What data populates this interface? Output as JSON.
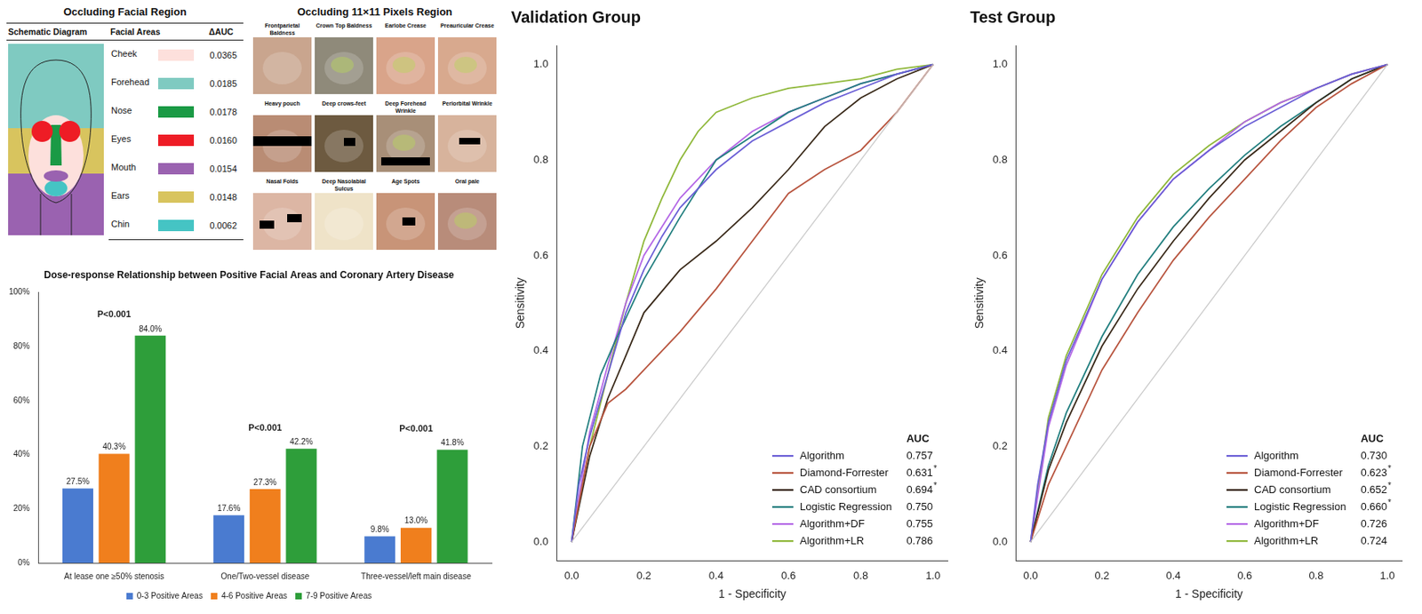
{
  "chart_data": [
    {
      "type": "bar",
      "title": "Dose-response Relationship between Positive Facial Areas and Coronary Artery Disease",
      "categories": [
        "At lease one ≥50% stenosis",
        "One/Two-vessel disease",
        "Three-vessel/left main disease"
      ],
      "series": [
        {
          "name": "0-3 Positive Areas",
          "color": "#4a7bd0",
          "values": [
            27.5,
            17.6,
            9.8
          ],
          "value_labels": [
            "27.5%",
            "17.6%",
            "9.8%"
          ]
        },
        {
          "name": "4-6 Positive Areas",
          "color": "#f07f1d",
          "values": [
            40.3,
            27.3,
            13.0
          ],
          "value_labels": [
            "40.3%",
            "27.3%",
            "13.0%"
          ]
        },
        {
          "name": "7-9 Positive Areas",
          "color": "#2e9e3a",
          "values": [
            84.0,
            42.2,
            41.8
          ],
          "value_labels": [
            "84.0%",
            "42.2%",
            "41.8%"
          ]
        }
      ],
      "ylim": [
        0,
        100
      ],
      "yticks": [
        {
          "value": 0,
          "label": "0%"
        },
        {
          "value": 20,
          "label": "20%"
        },
        {
          "value": 40,
          "label": "40%"
        },
        {
          "value": 60,
          "label": "60%"
        },
        {
          "value": 80,
          "label": "80%"
        },
        {
          "value": 100,
          "label": "100%"
        }
      ],
      "grid": false,
      "data_labels": true,
      "legend": "bottom",
      "annotations": [
        {
          "category": "At lease one ≥50% stenosis",
          "text": "P<0.001"
        },
        {
          "category": "One/Two-vessel disease",
          "text": "P<0.001"
        },
        {
          "category": "Three-vessel/left main disease",
          "text": "P<0.001"
        }
      ]
    },
    {
      "type": "line",
      "title": "Validation Group",
      "x_label": "1 - Specificity",
      "y_label": "Sensitivity",
      "xlim": [
        -0.04,
        1.04
      ],
      "ylim": [
        -0.04,
        1.04
      ],
      "xticks": [
        {
          "value": 0,
          "label": "0.0"
        },
        {
          "value": 0.2,
          "label": "0.2"
        },
        {
          "value": 0.4,
          "label": "0.4"
        },
        {
          "value": 0.6,
          "label": "0.6"
        },
        {
          "value": 0.8,
          "label": "0.8"
        },
        {
          "value": 1,
          "label": "1.0"
        }
      ],
      "yticks": [
        {
          "value": 0,
          "label": "0.0"
        },
        {
          "value": 0.2,
          "label": "0.2"
        },
        {
          "value": 0.4,
          "label": "0.4"
        },
        {
          "value": 0.6,
          "label": "0.6"
        },
        {
          "value": 0.8,
          "label": "0.8"
        },
        {
          "value": 1,
          "label": "1.0"
        }
      ],
      "grid": false,
      "legend": "lower right",
      "legend_title": "AUC",
      "reference_line": {
        "x": [
          0,
          1
        ],
        "values": [
          0,
          1
        ],
        "color": "#c8c8c8"
      },
      "series": [
        {
          "name": "Algorithm",
          "color": "#6b5fd6",
          "auc": "0.757",
          "x": [
            0,
            0.02,
            0.05,
            0.1,
            0.15,
            0.2,
            0.25,
            0.3,
            0.4,
            0.5,
            0.6,
            0.7,
            0.8,
            0.9,
            1
          ],
          "values": [
            0,
            0.12,
            0.22,
            0.35,
            0.48,
            0.57,
            0.64,
            0.7,
            0.78,
            0.84,
            0.88,
            0.92,
            0.95,
            0.98,
            1
          ]
        },
        {
          "name": "Diamond-Forrester",
          "color": "#b8553f",
          "auc": "0.631*",
          "x": [
            0,
            0.05,
            0.1,
            0.15,
            0.2,
            0.3,
            0.4,
            0.5,
            0.6,
            0.7,
            0.8,
            0.9,
            1
          ],
          "values": [
            0,
            0.2,
            0.29,
            0.32,
            0.36,
            0.44,
            0.53,
            0.63,
            0.73,
            0.78,
            0.82,
            0.9,
            1
          ]
        },
        {
          "name": "CAD consortium",
          "color": "#3a2a1a",
          "auc": "0.694*",
          "x": [
            0,
            0.05,
            0.1,
            0.2,
            0.3,
            0.4,
            0.5,
            0.6,
            0.7,
            0.8,
            0.9,
            1
          ],
          "values": [
            0,
            0.18,
            0.3,
            0.48,
            0.57,
            0.63,
            0.7,
            0.78,
            0.87,
            0.93,
            0.97,
            1
          ]
        },
        {
          "name": "Logistic Regression",
          "color": "#227f7f",
          "auc": "0.750",
          "x": [
            0,
            0.03,
            0.08,
            0.12,
            0.2,
            0.3,
            0.4,
            0.5,
            0.6,
            0.7,
            0.8,
            0.9,
            1
          ],
          "values": [
            0,
            0.2,
            0.35,
            0.42,
            0.55,
            0.68,
            0.8,
            0.85,
            0.9,
            0.93,
            0.96,
            0.98,
            1
          ]
        },
        {
          "name": "Algorithm+DF",
          "color": "#b468e6",
          "auc": "0.755",
          "x": [
            0,
            0.05,
            0.1,
            0.15,
            0.2,
            0.3,
            0.4,
            0.5,
            0.6,
            0.7,
            0.8,
            0.9,
            1
          ],
          "values": [
            0,
            0.23,
            0.37,
            0.5,
            0.6,
            0.72,
            0.8,
            0.86,
            0.9,
            0.93,
            0.96,
            0.98,
            1
          ]
        },
        {
          "name": "Algorithm+LR",
          "color": "#8fb83a",
          "auc": "0.786",
          "x": [
            0,
            0.05,
            0.1,
            0.15,
            0.2,
            0.25,
            0.3,
            0.35,
            0.4,
            0.5,
            0.6,
            0.7,
            0.8,
            0.9,
            1
          ],
          "values": [
            0,
            0.2,
            0.35,
            0.5,
            0.63,
            0.72,
            0.8,
            0.86,
            0.9,
            0.93,
            0.95,
            0.96,
            0.97,
            0.99,
            1
          ]
        }
      ]
    },
    {
      "type": "line",
      "title": "Test Group",
      "x_label": "1 - Specificity",
      "y_label": "Sensitivity",
      "xlim": [
        -0.04,
        1.04
      ],
      "ylim": [
        -0.04,
        1.04
      ],
      "xticks": [
        {
          "value": 0,
          "label": "0.0"
        },
        {
          "value": 0.2,
          "label": "0.2"
        },
        {
          "value": 0.4,
          "label": "0.4"
        },
        {
          "value": 0.6,
          "label": "0.6"
        },
        {
          "value": 0.8,
          "label": "0.8"
        },
        {
          "value": 1,
          "label": "1.0"
        }
      ],
      "yticks": [
        {
          "value": 0,
          "label": "0.0"
        },
        {
          "value": 0.2,
          "label": "0.2"
        },
        {
          "value": 0.4,
          "label": "0.4"
        },
        {
          "value": 0.6,
          "label": "0.6"
        },
        {
          "value": 0.8,
          "label": "0.8"
        },
        {
          "value": 1,
          "label": "1.0"
        }
      ],
      "grid": false,
      "legend": "lower right",
      "legend_title": "AUC",
      "reference_line": {
        "x": [
          0,
          1
        ],
        "values": [
          0,
          1
        ],
        "color": "#c8c8c8"
      },
      "series": [
        {
          "name": "Algorithm",
          "color": "#6b5fd6",
          "auc": "0.730",
          "x": [
            0,
            0.02,
            0.05,
            0.1,
            0.2,
            0.3,
            0.4,
            0.5,
            0.6,
            0.7,
            0.8,
            0.9,
            1
          ],
          "values": [
            0,
            0.12,
            0.25,
            0.38,
            0.55,
            0.67,
            0.76,
            0.82,
            0.87,
            0.91,
            0.95,
            0.98,
            1
          ]
        },
        {
          "name": "Diamond-Forrester",
          "color": "#b8553f",
          "auc": "0.623*",
          "x": [
            0,
            0.05,
            0.1,
            0.2,
            0.3,
            0.4,
            0.5,
            0.6,
            0.7,
            0.8,
            0.9,
            1
          ],
          "values": [
            0,
            0.12,
            0.2,
            0.36,
            0.48,
            0.59,
            0.68,
            0.76,
            0.84,
            0.91,
            0.96,
            1
          ]
        },
        {
          "name": "CAD consortium",
          "color": "#3a2a1a",
          "auc": "0.652*",
          "x": [
            0,
            0.05,
            0.1,
            0.2,
            0.3,
            0.4,
            0.5,
            0.6,
            0.7,
            0.8,
            0.9,
            1
          ],
          "values": [
            0,
            0.15,
            0.25,
            0.41,
            0.53,
            0.63,
            0.72,
            0.8,
            0.86,
            0.92,
            0.97,
            1
          ]
        },
        {
          "name": "Logistic Regression",
          "color": "#227f7f",
          "auc": "0.660*",
          "x": [
            0,
            0.05,
            0.1,
            0.2,
            0.3,
            0.4,
            0.5,
            0.6,
            0.7,
            0.8,
            0.9,
            1
          ],
          "values": [
            0,
            0.16,
            0.27,
            0.43,
            0.56,
            0.66,
            0.74,
            0.81,
            0.87,
            0.92,
            0.97,
            1
          ]
        },
        {
          "name": "Algorithm+DF",
          "color": "#b468e6",
          "auc": "0.726",
          "x": [
            0,
            0.05,
            0.1,
            0.2,
            0.3,
            0.4,
            0.5,
            0.6,
            0.7,
            0.8,
            0.9,
            1
          ],
          "values": [
            0,
            0.24,
            0.37,
            0.55,
            0.67,
            0.76,
            0.82,
            0.88,
            0.92,
            0.95,
            0.98,
            1
          ]
        },
        {
          "name": "Algorithm+LR",
          "color": "#8fb83a",
          "auc": "0.724",
          "x": [
            0,
            0.05,
            0.1,
            0.2,
            0.3,
            0.4,
            0.5,
            0.6,
            0.7,
            0.8,
            0.9,
            1
          ],
          "values": [
            0,
            0.26,
            0.39,
            0.56,
            0.68,
            0.77,
            0.83,
            0.88,
            0.92,
            0.95,
            0.98,
            1
          ]
        }
      ]
    }
  ],
  "facial_region": {
    "title": "Occluding Facial Region",
    "header": [
      "Schematic Diagram",
      "Facial Areas",
      "ΔAUC"
    ],
    "rows": [
      {
        "area": "Cheek",
        "color": "#fde0dc",
        "delta_auc": "0.0365"
      },
      {
        "area": "Forehead",
        "color": "#7fcac1",
        "delta_auc": "0.0185"
      },
      {
        "area": "Nose",
        "color": "#1a9a45",
        "delta_auc": "0.0178"
      },
      {
        "area": "Eyes",
        "color": "#ee1c25",
        "delta_auc": "0.0160"
      },
      {
        "area": "Mouth",
        "color": "#9a62b0",
        "delta_auc": "0.0154"
      },
      {
        "area": "Ears",
        "color": "#d8c45e",
        "delta_auc": "0.0148"
      },
      {
        "area": "Chin",
        "color": "#45c4c4",
        "delta_auc": "0.0062"
      }
    ]
  },
  "pixel_region": {
    "title": "Occluding 11×11 Pixels Region",
    "panels": [
      "Frontparietal Baldness",
      "Crown Top Baldness",
      "Earlobe Crease",
      "Preauricular Crease",
      "Heavy pouch",
      "Deep crows-feet",
      "Deep Forehead Wrinkle",
      "Periorbital Wrinkle",
      "Nasal Folds",
      "Deep Nasolabial Sulcus",
      "Age Spots",
      "Oral pale"
    ]
  }
}
